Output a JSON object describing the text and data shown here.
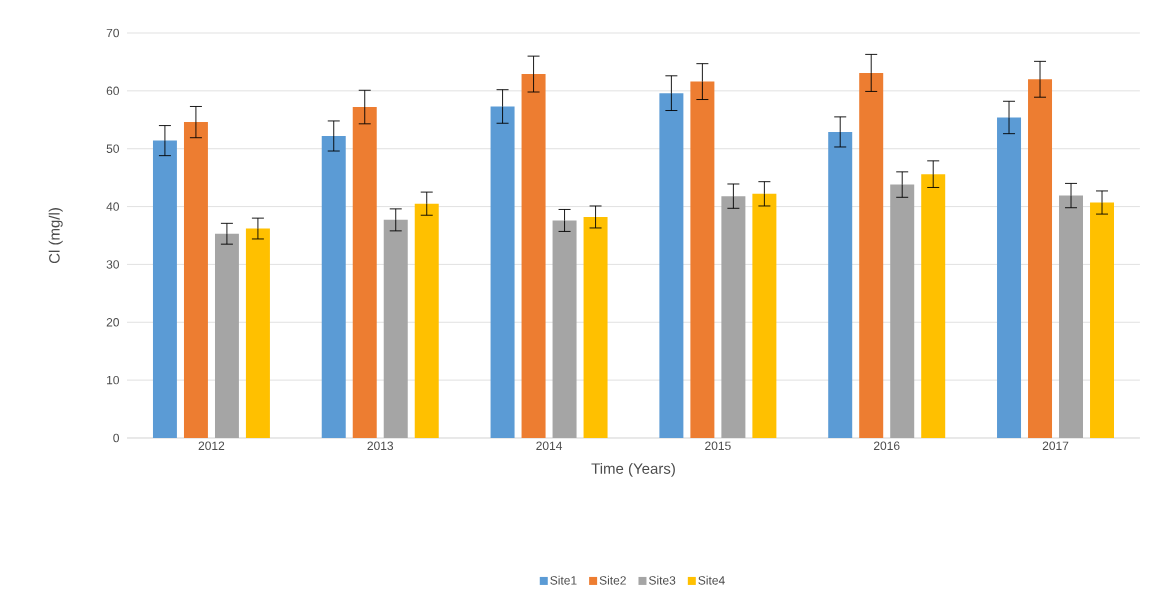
{
  "chart_data": {
    "type": "bar",
    "xlabel": "Time (Years)",
    "ylabel": "Cl (mg/l)",
    "categories": [
      "2012",
      "2013",
      "2014",
      "2015",
      "2016",
      "2017"
    ],
    "series": [
      {
        "name": "Site1",
        "color": "#5b9bd5",
        "values": [
          51.4,
          52.2,
          57.3,
          59.6,
          52.9,
          55.4
        ],
        "errors": [
          2.6,
          2.6,
          2.9,
          3.0,
          2.6,
          2.8
        ]
      },
      {
        "name": "Site2",
        "color": "#ed7d31",
        "values": [
          54.6,
          57.2,
          62.9,
          61.6,
          63.1,
          62.0
        ],
        "errors": [
          2.7,
          2.9,
          3.1,
          3.1,
          3.2,
          3.1
        ]
      },
      {
        "name": "Site3",
        "color": "#a5a5a5",
        "values": [
          35.3,
          37.7,
          37.6,
          41.8,
          43.8,
          41.9
        ],
        "errors": [
          1.8,
          1.9,
          1.9,
          2.1,
          2.2,
          2.1
        ]
      },
      {
        "name": "Site4",
        "color": "#ffc000",
        "values": [
          36.2,
          40.5,
          38.2,
          42.2,
          45.6,
          40.7
        ],
        "errors": [
          1.8,
          2.0,
          1.9,
          2.1,
          2.3,
          2.0
        ]
      }
    ],
    "ylim": [
      0,
      70
    ],
    "yticks": [
      0,
      10,
      20,
      30,
      40,
      50,
      60,
      70
    ],
    "grid": "y",
    "legend": "bottom"
  }
}
